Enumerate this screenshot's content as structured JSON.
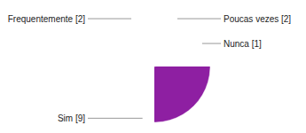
{
  "chart_data": {
    "type": "pie",
    "categories": [
      "Poucas vezes [2]",
      "Nunca [1]",
      "Sim [9]",
      "Frequentemente [2]"
    ],
    "values": [
      2,
      1,
      9,
      2
    ],
    "colors": [
      "#c46fd1",
      "#e9c6ee",
      "#8e1fa2",
      "#a23bb6"
    ]
  }
}
